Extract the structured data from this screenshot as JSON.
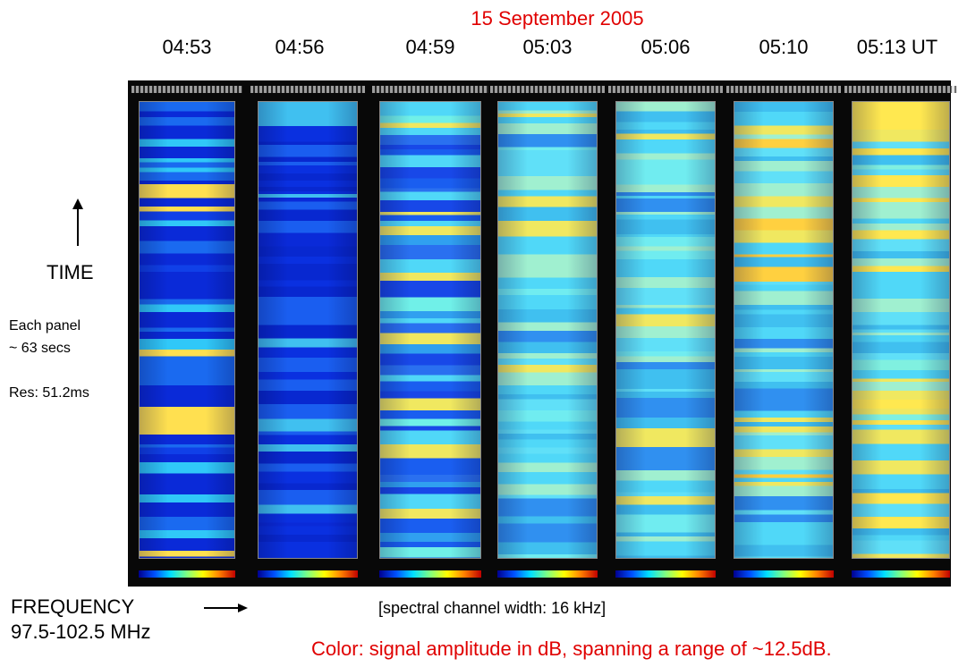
{
  "header": {
    "date": "15 September 2005",
    "times": [
      "04:53",
      "04:56",
      "04:59",
      "05:03",
      "05:06",
      "05:10",
      "05:13 UT"
    ]
  },
  "left_notes": {
    "time_label": "TIME",
    "panel_duration": "Each panel\n~ 63 secs",
    "resolution": "Res: 51.2ms"
  },
  "frequency": {
    "label": "FREQUENCY",
    "range": "97.5-102.5 MHz"
  },
  "footer": {
    "channel_width": "[spectral channel width: 16 kHz]",
    "color_note": "Color: signal amplitude in dB, spanning a range of ~12.5dB."
  }
}
